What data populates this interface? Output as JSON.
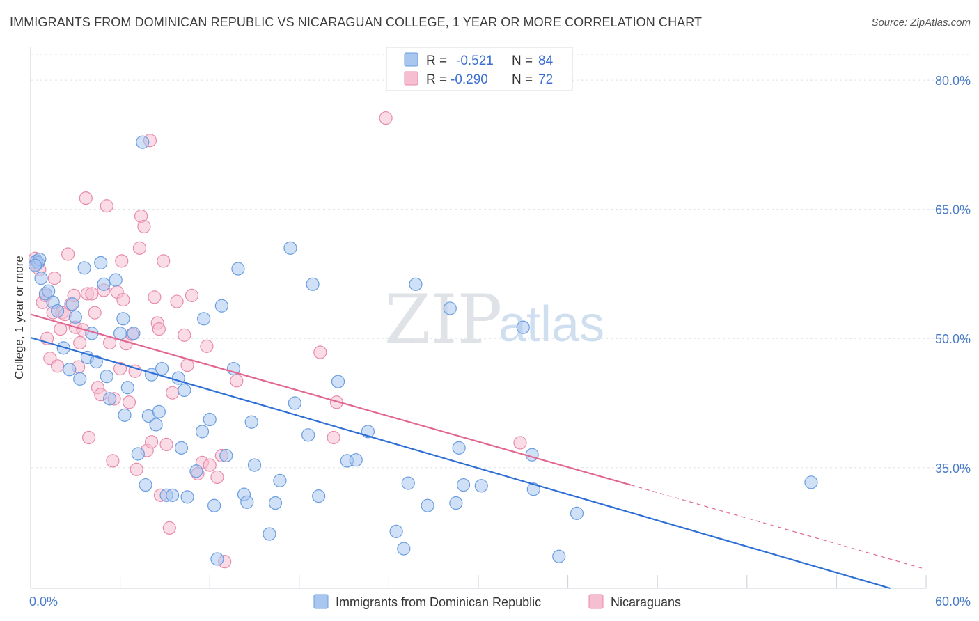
{
  "title": "IMMIGRANTS FROM DOMINICAN REPUBLIC VS NICARAGUAN COLLEGE, 1 YEAR OR MORE CORRELATION CHART",
  "source": "Source: ZipAtlas.com",
  "watermark": {
    "zip": "ZIP",
    "atlas": "atlas"
  },
  "colors": {
    "blue_fill": "#a9c6ee",
    "blue_stroke": "#6a9ee0",
    "blue_line": "#2e6fd6",
    "pink_fill": "#f6bfd1",
    "pink_stroke": "#e98aaa",
    "pink_line": "#e26790",
    "grid": "#dde3ea",
    "tick_text": "#4a7cc9"
  },
  "legend": {
    "rows": [
      {
        "r_label": "R =",
        "r_value": "-0.521",
        "n_label": "N =",
        "n_value": "84"
      },
      {
        "r_label": "R =",
        "r_value": "-0.290",
        "n_label": "N =",
        "n_value": "72"
      }
    ]
  },
  "bottom_legend": [
    "Immigrants from Dominican Republic",
    "Nicaraguans"
  ],
  "chart_data": {
    "type": "scatter",
    "title": "IMMIGRANTS FROM DOMINICAN REPUBLIC VS NICARAGUAN COLLEGE, 1 YEAR OR MORE CORRELATION CHART",
    "xlabel": "",
    "ylabel": "College, 1 year or more",
    "xlim": [
      0,
      60
    ],
    "ylim": [
      21,
      83
    ],
    "x_tick_labels": [
      "0.0%",
      "60.0%"
    ],
    "y_ticks": [
      35,
      50,
      65,
      80
    ],
    "y_tick_labels": [
      "35.0%",
      "50.0%",
      "65.0%",
      "80.0%"
    ],
    "grid": true,
    "legend_position": "top-center",
    "series": [
      {
        "name": "Immigrants from Dominican Republic",
        "r": -0.521,
        "n": 84,
        "trend": {
          "x": [
            0,
            57.6
          ],
          "y": [
            50.1,
            21.0
          ]
        },
        "points": [
          [
            0.4,
            59.0
          ],
          [
            0.5,
            58.8
          ],
          [
            0.6,
            59.2
          ],
          [
            0.7,
            57.0
          ],
          [
            1.0,
            55.2
          ],
          [
            1.2,
            55.5
          ],
          [
            1.5,
            54.2
          ],
          [
            1.8,
            53.2
          ],
          [
            2.2,
            48.9
          ],
          [
            2.6,
            46.4
          ],
          [
            2.8,
            54.0
          ],
          [
            3.0,
            52.5
          ],
          [
            3.3,
            45.3
          ],
          [
            3.6,
            58.2
          ],
          [
            3.8,
            47.8
          ],
          [
            4.1,
            50.6
          ],
          [
            4.4,
            47.3
          ],
          [
            4.7,
            58.8
          ],
          [
            4.9,
            56.3
          ],
          [
            5.1,
            45.6
          ],
          [
            5.3,
            43.0
          ],
          [
            5.7,
            56.8
          ],
          [
            6.0,
            50.6
          ],
          [
            6.2,
            52.3
          ],
          [
            6.3,
            41.1
          ],
          [
            6.5,
            44.3
          ],
          [
            6.9,
            50.6
          ],
          [
            7.2,
            36.6
          ],
          [
            7.5,
            72.8
          ],
          [
            7.7,
            33.0
          ],
          [
            7.9,
            41.0
          ],
          [
            8.1,
            45.8
          ],
          [
            8.4,
            40.0
          ],
          [
            8.6,
            41.5
          ],
          [
            8.8,
            46.5
          ],
          [
            9.1,
            31.8
          ],
          [
            9.5,
            31.8
          ],
          [
            9.9,
            45.4
          ],
          [
            10.1,
            37.3
          ],
          [
            10.3,
            44.0
          ],
          [
            10.5,
            31.6
          ],
          [
            11.1,
            34.6
          ],
          [
            11.5,
            39.2
          ],
          [
            11.6,
            52.3
          ],
          [
            12.0,
            40.6
          ],
          [
            12.3,
            30.6
          ],
          [
            12.5,
            24.4
          ],
          [
            12.8,
            53.8
          ],
          [
            13.1,
            36.4
          ],
          [
            13.6,
            46.5
          ],
          [
            13.9,
            58.1
          ],
          [
            14.3,
            31.9
          ],
          [
            14.5,
            31.0
          ],
          [
            14.8,
            40.3
          ],
          [
            15.0,
            35.3
          ],
          [
            16.0,
            27.3
          ],
          [
            16.4,
            30.9
          ],
          [
            16.7,
            33.5
          ],
          [
            17.4,
            60.5
          ],
          [
            17.7,
            42.5
          ],
          [
            18.6,
            38.8
          ],
          [
            18.9,
            56.3
          ],
          [
            19.3,
            31.7
          ],
          [
            20.6,
            45.0
          ],
          [
            21.2,
            35.8
          ],
          [
            21.8,
            35.9
          ],
          [
            22.6,
            39.2
          ],
          [
            24.5,
            27.6
          ],
          [
            25.0,
            25.6
          ],
          [
            25.3,
            33.2
          ],
          [
            25.8,
            56.3
          ],
          [
            26.6,
            30.6
          ],
          [
            28.1,
            53.5
          ],
          [
            28.5,
            30.9
          ],
          [
            28.7,
            37.3
          ],
          [
            29.0,
            33.0
          ],
          [
            30.2,
            32.9
          ],
          [
            33.0,
            51.3
          ],
          [
            33.6,
            36.5
          ],
          [
            33.7,
            32.5
          ],
          [
            35.4,
            24.7
          ],
          [
            36.6,
            29.7
          ],
          [
            52.3,
            33.3
          ],
          [
            0.3,
            58.5
          ]
        ]
      },
      {
        "name": "Nicaraguans",
        "r": -0.29,
        "n": 72,
        "trend": {
          "x": [
            0,
            40.2
          ],
          "y": [
            52.8,
            33.0
          ]
        },
        "trend_dashed": {
          "x": [
            40.2,
            60
          ],
          "y": [
            33.0,
            23.2
          ]
        },
        "points": [
          [
            0.3,
            59.3
          ],
          [
            0.4,
            58.6
          ],
          [
            0.6,
            58.0
          ],
          [
            0.8,
            54.2
          ],
          [
            1.0,
            55.0
          ],
          [
            1.1,
            50.0
          ],
          [
            1.3,
            47.7
          ],
          [
            1.5,
            53.0
          ],
          [
            1.6,
            57.0
          ],
          [
            1.8,
            46.8
          ],
          [
            2.0,
            51.1
          ],
          [
            2.1,
            53.0
          ],
          [
            2.3,
            52.8
          ],
          [
            2.5,
            59.8
          ],
          [
            2.7,
            54.0
          ],
          [
            2.9,
            55.0
          ],
          [
            3.0,
            51.3
          ],
          [
            3.2,
            46.7
          ],
          [
            3.3,
            49.5
          ],
          [
            3.5,
            51.0
          ],
          [
            3.7,
            66.3
          ],
          [
            3.8,
            55.2
          ],
          [
            3.9,
            38.5
          ],
          [
            4.1,
            55.2
          ],
          [
            4.3,
            53.0
          ],
          [
            4.5,
            44.3
          ],
          [
            4.7,
            43.5
          ],
          [
            4.9,
            55.6
          ],
          [
            5.1,
            65.4
          ],
          [
            5.3,
            49.5
          ],
          [
            5.5,
            35.8
          ],
          [
            5.6,
            43.0
          ],
          [
            5.8,
            55.4
          ],
          [
            6.0,
            46.5
          ],
          [
            6.1,
            59.0
          ],
          [
            6.2,
            54.5
          ],
          [
            6.4,
            49.4
          ],
          [
            6.6,
            42.6
          ],
          [
            6.8,
            50.5
          ],
          [
            7.0,
            46.2
          ],
          [
            7.1,
            34.8
          ],
          [
            7.3,
            60.5
          ],
          [
            7.4,
            64.2
          ],
          [
            7.6,
            63.0
          ],
          [
            7.8,
            37.0
          ],
          [
            8.0,
            73.0
          ],
          [
            8.1,
            38.0
          ],
          [
            8.3,
            54.8
          ],
          [
            8.5,
            51.8
          ],
          [
            8.6,
            51.1
          ],
          [
            8.7,
            31.8
          ],
          [
            8.9,
            59.0
          ],
          [
            9.1,
            37.7
          ],
          [
            9.3,
            28.0
          ],
          [
            9.5,
            43.7
          ],
          [
            9.8,
            54.3
          ],
          [
            10.3,
            50.4
          ],
          [
            10.5,
            46.9
          ],
          [
            10.8,
            55.0
          ],
          [
            11.2,
            34.3
          ],
          [
            11.5,
            35.6
          ],
          [
            11.8,
            49.1
          ],
          [
            12.0,
            35.3
          ],
          [
            12.5,
            33.9
          ],
          [
            12.8,
            36.4
          ],
          [
            13.0,
            24.1
          ],
          [
            13.8,
            45.1
          ],
          [
            19.4,
            48.4
          ],
          [
            20.3,
            38.5
          ],
          [
            20.5,
            42.6
          ],
          [
            23.8,
            75.6
          ],
          [
            32.8,
            37.9
          ]
        ]
      }
    ]
  }
}
